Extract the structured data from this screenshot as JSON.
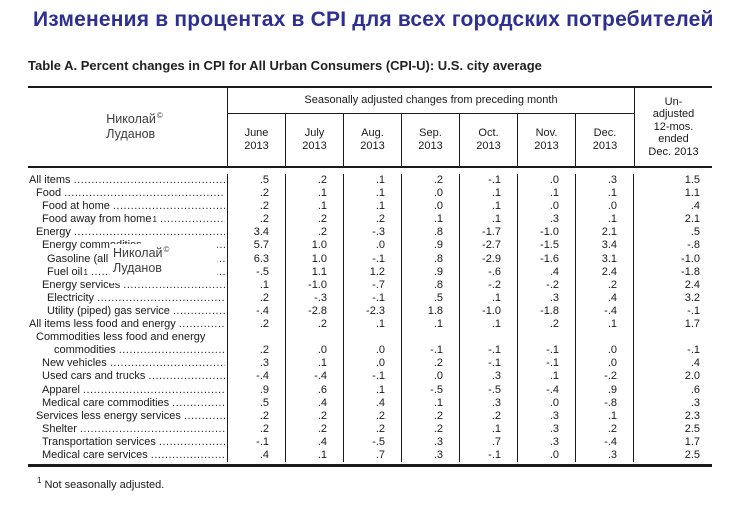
{
  "page": {
    "title": "Изменения в процентах в CPI для всех городских потребителей",
    "table_title": "Table A. Percent changes in CPI for All Urban Consumers (CPI-U): U.S. city average",
    "footnote": {
      "sup": "1",
      "text": "Not seasonally adjusted."
    }
  },
  "watermark": {
    "first_name": "Николай",
    "sup": "©",
    "last_name": "Луданов"
  },
  "table": {
    "group_header": "Seasonally adjusted changes from preceding month",
    "month_headers": [
      "June\n2013",
      "July\n2013",
      "Aug.\n2013",
      "Sep.\n2013",
      "Oct.\n2013",
      "Nov.\n2013",
      "Dec.\n2013"
    ],
    "unadjusted_header": "Un-\nadjusted\n12-mos.\nended\nDec. 2013",
    "rows": [
      {
        "label": "All items",
        "indent": 0,
        "values": [
          ".5",
          ".2",
          ".1",
          ".2",
          "-.1",
          ".0",
          ".3",
          "1.5"
        ]
      },
      {
        "label": "Food",
        "indent": 1,
        "values": [
          ".2",
          ".1",
          ".1",
          ".0",
          ".1",
          ".1",
          ".1",
          "1.1"
        ]
      },
      {
        "label": "Food at home",
        "indent": 2,
        "values": [
          ".2",
          ".1",
          ".1",
          ".0",
          ".1",
          ".0",
          ".0",
          ".4"
        ]
      },
      {
        "label": "Food away from home",
        "sup": "1",
        "indent": 2,
        "values": [
          ".2",
          ".2",
          ".2",
          ".1",
          ".1",
          ".3",
          ".1",
          "2.1"
        ]
      },
      {
        "label": "Energy",
        "indent": 1,
        "values": [
          "3.4",
          ".2",
          "-.3",
          ".8",
          "-1.7",
          "-1.0",
          "2.1",
          ".5"
        ]
      },
      {
        "label": "Energy commodities",
        "indent": 2,
        "values": [
          "5.7",
          "1.0",
          ".0",
          ".9",
          "-2.7",
          "-1.5",
          "3.4",
          "-.8"
        ]
      },
      {
        "label": "Gasoline (all types)",
        "indent": 3,
        "values": [
          "6.3",
          "1.0",
          "-.1",
          ".8",
          "-2.9",
          "-1.6",
          "3.1",
          "-1.0"
        ]
      },
      {
        "label": "Fuel oil",
        "sup": "1",
        "indent": 3,
        "values": [
          "-.5",
          "1.1",
          "1.2",
          ".9",
          "-.6",
          ".4",
          "2.4",
          "-1.8"
        ]
      },
      {
        "label": "Energy services",
        "indent": 2,
        "values": [
          ".1",
          "-1.0",
          "-.7",
          ".8",
          "-.2",
          "-.2",
          ".2",
          "2.4"
        ]
      },
      {
        "label": "Electricity",
        "indent": 3,
        "values": [
          ".2",
          "-.3",
          "-.1",
          ".5",
          ".1",
          ".3",
          ".4",
          "3.2"
        ]
      },
      {
        "label": "Utility (piped) gas service",
        "indent": 3,
        "values": [
          "-.4",
          "-2.8",
          "-2.3",
          "1.8",
          "-1.0",
          "-1.8",
          "-.4",
          "-.1"
        ]
      },
      {
        "label": "All items less food and energy",
        "indent": 0,
        "values": [
          ".2",
          ".2",
          ".1",
          ".1",
          ".1",
          ".2",
          ".1",
          "1.7"
        ]
      },
      {
        "label": "Commodities less food and energy",
        "label2": "commodities",
        "indent": 1,
        "values": [
          ".2",
          ".0",
          ".0",
          "-.1",
          "-.1",
          "-.1",
          ".0",
          "-.1"
        ]
      },
      {
        "label": "New vehicles",
        "indent": 2,
        "values": [
          ".3",
          ".1",
          ".0",
          ".2",
          "-.1",
          "-.1",
          ".0",
          ".4"
        ]
      },
      {
        "label": "Used cars and trucks",
        "indent": 2,
        "values": [
          "-.4",
          "-.4",
          "-.1",
          ".0",
          ".3",
          ".1",
          "-.2",
          "2.0"
        ]
      },
      {
        "label": "Apparel",
        "indent": 2,
        "values": [
          ".9",
          ".6",
          ".1",
          "-.5",
          "-.5",
          "-.4",
          ".9",
          ".6"
        ]
      },
      {
        "label": "Medical care commodities",
        "indent": 2,
        "values": [
          ".5",
          ".4",
          ".4",
          ".1",
          ".3",
          ".0",
          "-.8",
          ".3"
        ]
      },
      {
        "label": "Services less energy services",
        "indent": 1,
        "values": [
          ".2",
          ".2",
          ".2",
          ".2",
          ".2",
          ".3",
          ".1",
          "2.3"
        ]
      },
      {
        "label": "Shelter",
        "indent": 2,
        "values": [
          ".2",
          ".2",
          ".2",
          ".2",
          ".1",
          ".3",
          ".2",
          "2.5"
        ]
      },
      {
        "label": "Transportation services",
        "indent": 2,
        "values": [
          "-.1",
          ".4",
          "-.5",
          ".3",
          ".7",
          ".3",
          "-.4",
          "1.7"
        ]
      },
      {
        "label": "Medical care services",
        "indent": 2,
        "values": [
          ".4",
          ".1",
          ".7",
          ".3",
          "-.1",
          ".0",
          ".3",
          "2.5"
        ]
      }
    ]
  },
  "colors": {
    "title": "#2d2f92",
    "text": "#1a1a1a",
    "border": "#1a1a1a",
    "watermark": "#3d3d3d",
    "background": "#ffffff"
  }
}
